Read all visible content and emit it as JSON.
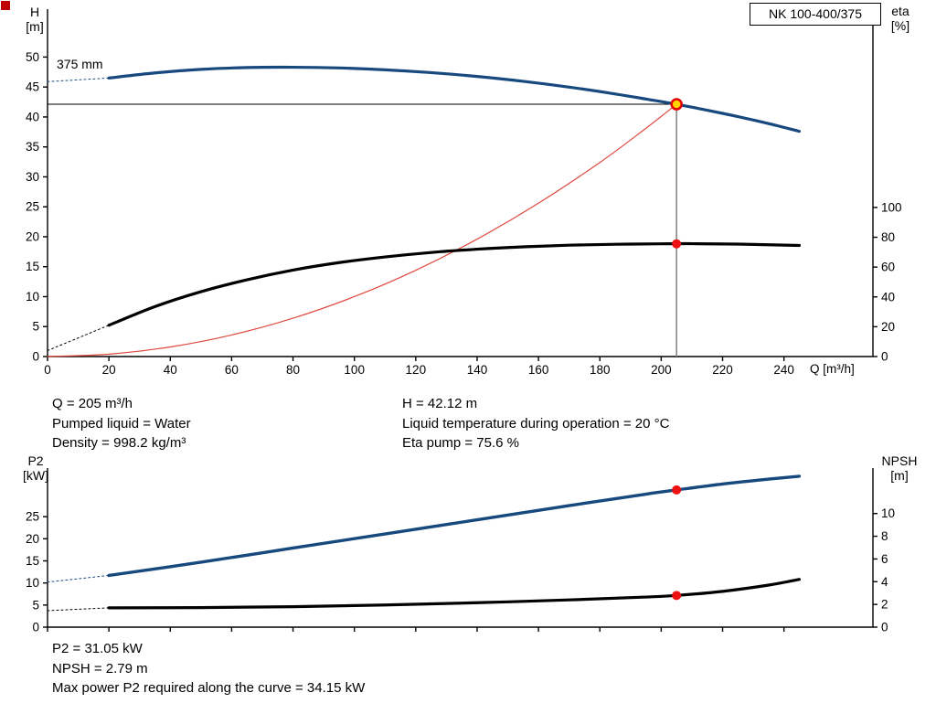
{
  "app": {
    "model": "NK 100-400/375"
  },
  "labels": {
    "h_axis": [
      "H",
      "[m]"
    ],
    "eta_axis": [
      "eta",
      "[%]"
    ],
    "q_axis": "Q [m³/h]",
    "p2_axis": [
      "P2",
      "[kW]"
    ],
    "npsh_axis": [
      "NPSH",
      "[m]"
    ],
    "impeller": "375 mm"
  },
  "colors": {
    "pump_curve": "#17497F",
    "black_curve": "#000000",
    "system_curve": "#E0493E",
    "duty_fill": "#FFD400",
    "duty_ring": "#E50000",
    "dot": "#EE1111",
    "vline": "#808080",
    "axis": "#000000"
  },
  "info_top": {
    "left": [
      "Q = 205 m³/h",
      "Pumped liquid = Water",
      "Density = 998.2 kg/m³"
    ],
    "right": [
      "H = 42.12 m",
      "Liquid temperature during operation = 20 °C",
      "Eta pump = 75.6 %"
    ]
  },
  "info_bottom": [
    "P2 = 31.05 kW",
    "NPSH = 2.79 m",
    "Max power P2 required along the curve = 34.15 kW"
  ],
  "chart_data": [
    {
      "type": "line",
      "title": "QH and efficiency curves",
      "x": {
        "label": "Q [m³/h]",
        "min": 0,
        "max": 269,
        "ticks": [
          0,
          20,
          40,
          60,
          80,
          100,
          120,
          140,
          160,
          180,
          200,
          220,
          240
        ],
        "show_tick_labels": true
      },
      "y_left": {
        "label": "H [m]",
        "min": 0,
        "max": 58,
        "ticks": [
          0,
          5,
          10,
          15,
          20,
          25,
          30,
          35,
          40,
          45,
          50
        ]
      },
      "y_right": {
        "label": "eta [%]",
        "min": 0,
        "max": 233,
        "ticks": [
          0,
          20,
          40,
          60,
          80,
          100
        ]
      },
      "ref_lines": [
        {
          "name": "duty-head-line",
          "type": "h",
          "value": 42.12,
          "from": 0,
          "to": 205,
          "color": "#000000",
          "width": 1
        },
        {
          "name": "duty-flow-line",
          "type": "v",
          "at": 205,
          "from": 0,
          "to": 42.12,
          "color": "#808080",
          "width": 1.5
        }
      ],
      "series": [
        {
          "name": "system-curve",
          "axis": "left",
          "color": "#E0493E",
          "width": 1.2,
          "points": [
            [
              0,
              0
            ],
            [
              20,
              0.4
            ],
            [
              40,
              1.6
            ],
            [
              60,
              3.6
            ],
            [
              80,
              6.4
            ],
            [
              100,
              10.0
            ],
            [
              120,
              14.4
            ],
            [
              140,
              19.6
            ],
            [
              160,
              25.6
            ],
            [
              180,
              32.4
            ],
            [
              195,
              38.1
            ],
            [
              205,
              42.12
            ]
          ]
        },
        {
          "name": "pump-curve-lead-in",
          "axis": "left",
          "color": "#17497F",
          "width": 1,
          "dash": "2 3",
          "points": [
            [
              0,
              45.9
            ],
            [
              20,
              46.5
            ]
          ]
        },
        {
          "name": "pump-curve-375mm",
          "axis": "left",
          "color": "#17497F",
          "width": 3.2,
          "points": [
            [
              20,
              46.5
            ],
            [
              35,
              47.35
            ],
            [
              50,
              47.95
            ],
            [
              65,
              48.25
            ],
            [
              80,
              48.3
            ],
            [
              95,
              48.18
            ],
            [
              110,
              47.87
            ],
            [
              125,
              47.4
            ],
            [
              140,
              46.76
            ],
            [
              155,
              45.95
            ],
            [
              170,
              44.98
            ],
            [
              185,
              43.84
            ],
            [
              195,
              43.0
            ],
            [
              205,
              42.12
            ],
            [
              220,
              40.6
            ],
            [
              235,
              38.9
            ],
            [
              245,
              37.6
            ]
          ]
        },
        {
          "name": "eta-curve-lead-in",
          "axis": "right",
          "color": "#000000",
          "width": 1,
          "dash": "2 3",
          "points": [
            [
              0,
              4
            ],
            [
              20,
              21
            ]
          ]
        },
        {
          "name": "eta-curve",
          "axis": "right",
          "color": "#000000",
          "width": 3.2,
          "points": [
            [
              20,
              21
            ],
            [
              35,
              33.5
            ],
            [
              50,
              43.5
            ],
            [
              65,
              51.5
            ],
            [
              80,
              58
            ],
            [
              95,
              63
            ],
            [
              110,
              66.8
            ],
            [
              125,
              69.8
            ],
            [
              140,
              72
            ],
            [
              155,
              73.6
            ],
            [
              170,
              74.7
            ],
            [
              185,
              75.3
            ],
            [
              200,
              75.6
            ],
            [
              210,
              75.7
            ],
            [
              225,
              75.4
            ],
            [
              245,
              74.5
            ]
          ]
        }
      ],
      "markers": [
        {
          "name": "duty-point",
          "axis": "left",
          "q": 205,
          "value": 42.12,
          "style": "duty"
        },
        {
          "name": "eta-duty-point",
          "axis": "right",
          "q": 205,
          "value": 75.6,
          "style": "dot"
        }
      ]
    },
    {
      "type": "line",
      "title": "P2 and NPSH curves",
      "x": {
        "label": "",
        "min": 0,
        "max": 269,
        "ticks": [
          0,
          20,
          40,
          60,
          80,
          100,
          120,
          140,
          160,
          180,
          200,
          220,
          240
        ],
        "show_tick_labels": false
      },
      "y_left": {
        "label": "P2 [kW]",
        "min": 0,
        "max": 36,
        "ticks": [
          0,
          5,
          10,
          15,
          20,
          25
        ]
      },
      "y_right": {
        "label": "NPSH [m]",
        "min": 0,
        "max": 14,
        "ticks": [
          0,
          2,
          4,
          6,
          8,
          10
        ]
      },
      "ref_lines": [],
      "series": [
        {
          "name": "p2-curve-lead-in",
          "axis": "left",
          "color": "#17497F",
          "width": 1,
          "dash": "2 3",
          "points": [
            [
              0,
              10.2
            ],
            [
              20,
              11.7
            ]
          ]
        },
        {
          "name": "p2-curve",
          "axis": "left",
          "color": "#17497F",
          "width": 3.4,
          "points": [
            [
              20,
              11.7
            ],
            [
              50,
              14.7
            ],
            [
              80,
              17.9
            ],
            [
              110,
              21.1
            ],
            [
              140,
              24.3
            ],
            [
              170,
              27.5
            ],
            [
              195,
              30.1
            ],
            [
              205,
              31.05
            ],
            [
              220,
              32.4
            ],
            [
              235,
              33.5
            ],
            [
              245,
              34.15
            ]
          ]
        },
        {
          "name": "npsh-curve-lead-in",
          "axis": "right",
          "color": "#000000",
          "width": 1,
          "dash": "2 3",
          "points": [
            [
              0,
              1.45
            ],
            [
              20,
              1.7
            ]
          ]
        },
        {
          "name": "npsh-curve",
          "axis": "right",
          "color": "#000000",
          "width": 3.2,
          "points": [
            [
              20,
              1.7
            ],
            [
              50,
              1.72
            ],
            [
              80,
              1.8
            ],
            [
              110,
              1.95
            ],
            [
              140,
              2.15
            ],
            [
              170,
              2.4
            ],
            [
              195,
              2.65
            ],
            [
              205,
              2.79
            ],
            [
              220,
              3.15
            ],
            [
              235,
              3.7
            ],
            [
              245,
              4.2
            ]
          ]
        }
      ],
      "markers": [
        {
          "name": "p2-duty-point",
          "axis": "left",
          "q": 205,
          "value": 31.05,
          "style": "dot"
        },
        {
          "name": "npsh-duty-point",
          "axis": "right",
          "q": 205,
          "value": 2.79,
          "style": "dot"
        }
      ]
    }
  ]
}
